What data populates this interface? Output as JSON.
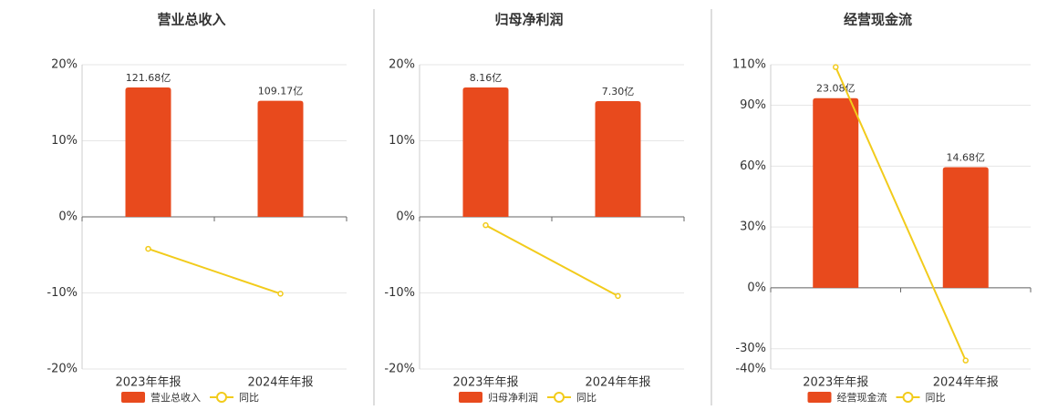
{
  "chart_data": [
    {
      "type": "bar",
      "title": "营业总收入",
      "categories": [
        "2023年年报",
        "2024年年报"
      ],
      "series": [
        {
          "name": "营业总收入",
          "type": "bar",
          "color": "#e84a1d",
          "values": [
            121.68,
            109.17
          ],
          "value_labels": [
            "121.68亿",
            "109.17亿"
          ]
        },
        {
          "name": "同比",
          "type": "line",
          "color": "#f2cb1b",
          "values": [
            -4.2,
            -10.1
          ]
        }
      ],
      "ylim": [
        -20,
        20
      ],
      "yticks": [
        {
          "value": -20,
          "label": "-20%"
        },
        {
          "value": -10,
          "label": "-10%"
        },
        {
          "value": 0,
          "label": "0%"
        },
        {
          "value": 10,
          "label": "10%"
        },
        {
          "value": 20,
          "label": "20%"
        }
      ],
      "grid": true
    },
    {
      "type": "bar",
      "title": "归母净利润",
      "categories": [
        "2023年年报",
        "2024年年报"
      ],
      "series": [
        {
          "name": "归母净利润",
          "type": "bar",
          "color": "#e84a1d",
          "values": [
            8.16,
            7.3
          ],
          "value_labels": [
            "8.16亿",
            "7.30亿"
          ]
        },
        {
          "name": "同比",
          "type": "line",
          "color": "#f2cb1b",
          "values": [
            -1.1,
            -10.4
          ]
        }
      ],
      "ylim": [
        -20,
        20
      ],
      "yticks": [
        {
          "value": -20,
          "label": "-20%"
        },
        {
          "value": -10,
          "label": "-10%"
        },
        {
          "value": 0,
          "label": "0%"
        },
        {
          "value": 10,
          "label": "10%"
        },
        {
          "value": 20,
          "label": "20%"
        }
      ],
      "grid": true
    },
    {
      "type": "bar",
      "title": "经营现金流",
      "categories": [
        "2023年年报",
        "2024年年报"
      ],
      "series": [
        {
          "name": "经营现金流",
          "type": "bar",
          "color": "#e84a1d",
          "values": [
            23.08,
            14.68
          ],
          "value_labels": [
            "23.08亿",
            "14.68亿"
          ]
        },
        {
          "name": "同比",
          "type": "line",
          "color": "#f2cb1b",
          "values": [
            108.8,
            -35.8
          ]
        }
      ],
      "ylim": [
        -40,
        110
      ],
      "yticks": [
        {
          "value": -40,
          "label": "-40%"
        },
        {
          "value": -30,
          "label": "-30%"
        },
        {
          "value": 0,
          "label": "0%"
        },
        {
          "value": 30,
          "label": "30%"
        },
        {
          "value": 60,
          "label": "60%"
        },
        {
          "value": 90,
          "label": "90%"
        },
        {
          "value": 110,
          "label": "110%"
        }
      ],
      "grid": true
    }
  ]
}
